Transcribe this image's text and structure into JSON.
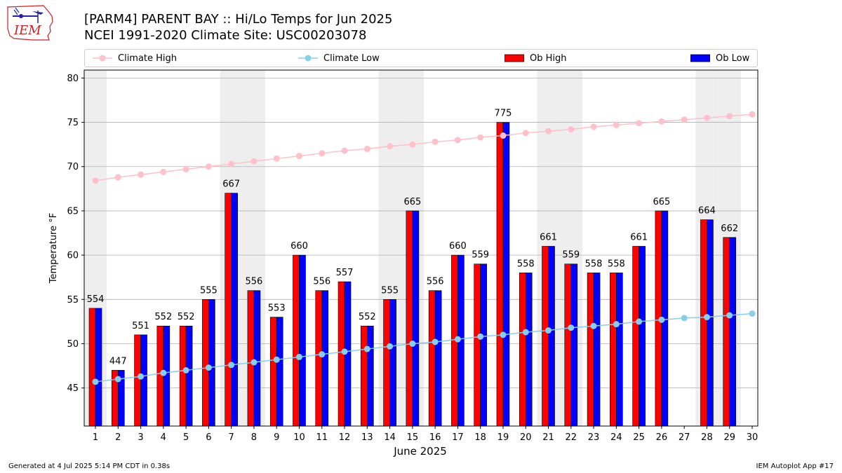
{
  "title_line1": "[PARM4] PARENT BAY :: Hi/Lo Temps for Jun 2025",
  "title_line2": "NCEI 1991-2020 Climate Site: USC00203078",
  "logo_text": "IEM",
  "footer_left": "Generated at 4 Jul 2025 5:14 PM CDT in 0.38s",
  "footer_right": "IEM Autoplot App #17",
  "colors": {
    "ob_high": "#ff0000",
    "ob_low": "#0000ff",
    "climate_high": "#ffc0cb",
    "climate_low": "#87ceeb",
    "weekend_band": "#eeeeee",
    "grid": "#b0b0b0",
    "logo": "#cc2222"
  },
  "chart_data": {
    "type": "bar",
    "xlabel": "June 2025",
    "ylabel": "Temperature °F",
    "ylim": [
      40.7,
      80.9
    ],
    "yticks": [
      45,
      50,
      55,
      60,
      65,
      70,
      75,
      80
    ],
    "categories": [
      "1",
      "2",
      "3",
      "4",
      "5",
      "6",
      "7",
      "8",
      "9",
      "10",
      "11",
      "12",
      "13",
      "14",
      "15",
      "16",
      "17",
      "18",
      "19",
      "20",
      "21",
      "22",
      "23",
      "24",
      "25",
      "26",
      "27",
      "28",
      "29",
      "30"
    ],
    "weekend_days": [
      1,
      7,
      8,
      14,
      15,
      21,
      22,
      28,
      29
    ],
    "legend_position": "top",
    "grid": "horizontal",
    "series": [
      {
        "name": "Ob High",
        "kind": "bar",
        "values": [
          54,
          47,
          51,
          52,
          52,
          55,
          67,
          56,
          53,
          60,
          56,
          57,
          52,
          55,
          65,
          56,
          60,
          59,
          75,
          58,
          61,
          59,
          58,
          58,
          61,
          65,
          null,
          64,
          62,
          null
        ]
      },
      {
        "name": "Ob Low",
        "kind": "bar",
        "values": [
          54,
          47,
          51,
          52,
          52,
          55,
          67,
          56,
          53,
          60,
          56,
          57,
          52,
          55,
          65,
          56,
          60,
          59,
          75,
          58,
          61,
          59,
          58,
          58,
          61,
          65,
          null,
          64,
          62,
          null
        ]
      },
      {
        "name": "Climate High",
        "kind": "line",
        "values": [
          68.4,
          68.8,
          69.1,
          69.4,
          69.7,
          70.0,
          70.3,
          70.6,
          70.9,
          71.2,
          71.5,
          71.8,
          72.0,
          72.3,
          72.5,
          72.8,
          73.0,
          73.3,
          73.5,
          73.8,
          74.0,
          74.2,
          74.5,
          74.7,
          74.9,
          75.1,
          75.3,
          75.5,
          75.7,
          75.9
        ]
      },
      {
        "name": "Climate Low",
        "kind": "line",
        "values": [
          45.7,
          46.0,
          46.3,
          46.7,
          47.0,
          47.3,
          47.6,
          47.9,
          48.2,
          48.5,
          48.8,
          49.1,
          49.4,
          49.7,
          50.0,
          50.2,
          50.5,
          50.8,
          51.0,
          51.3,
          51.5,
          51.8,
          52.0,
          52.2,
          52.5,
          52.7,
          52.9,
          53.0,
          53.2,
          53.4
        ]
      }
    ],
    "bar_labels": [
      "554",
      "447",
      "551",
      "552",
      "552",
      "555",
      "667",
      "556",
      "553",
      "660",
      "556",
      "557",
      "552",
      "555",
      "665",
      "556",
      "660",
      "559",
      "775",
      "558",
      "661",
      "559",
      "558",
      "558",
      "661",
      "665",
      null,
      "664",
      "662",
      null
    ]
  }
}
